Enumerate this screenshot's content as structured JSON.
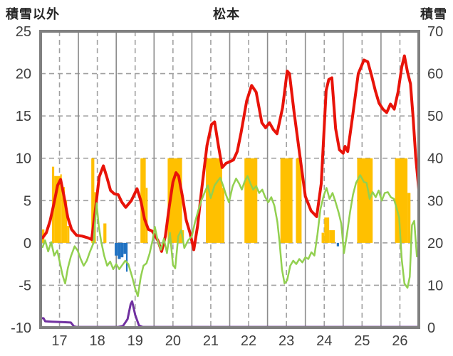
{
  "chart": {
    "left_axis_title": "積雪以外",
    "title": "松本",
    "right_axis_title": "積雪"
  },
  "chart_data": {
    "type": "combo line+bar time series (no legend shown)",
    "title": "松本",
    "x_axis": {
      "range": [
        17,
        27
      ],
      "tick_labels": [
        "17",
        "18",
        "19",
        "20",
        "21",
        "22",
        "23",
        "24",
        "25",
        "26"
      ],
      "solid_gridlines_at": [
        18,
        19,
        20,
        21,
        22,
        23,
        24,
        25,
        26
      ],
      "dashed_gridlines_at": [
        17.5,
        18.5,
        19.5,
        20.5,
        21.5,
        22.5,
        23.5,
        24.5,
        25.5,
        26.5
      ]
    },
    "left_axis": {
      "title": "積雪以外",
      "range": [
        -10,
        25
      ],
      "ticks": [
        25,
        20,
        15,
        10,
        5,
        0,
        -5,
        -10
      ],
      "dashed_gridlines_at": [
        20,
        15,
        10,
        5,
        0,
        -5
      ]
    },
    "right_axis": {
      "title": "積雪",
      "range": [
        0,
        70
      ],
      "ticks": [
        70,
        60,
        50,
        40,
        30,
        20,
        10,
        0
      ]
    },
    "colors": {
      "red_line": "#e81309",
      "green_line": "#92d050",
      "orange_bars": "#ffc000",
      "blue_bars": "#2172c2",
      "purple_line": "#7030a0",
      "grid_dashed": "#a0a0a0",
      "grid_solid": "#8c8c8c",
      "border": "#808080",
      "tick_text": "#3f3f3f"
    },
    "series": [
      {
        "name": "red_line",
        "type": "line",
        "axis": "left",
        "color": "#e81309",
        "width": 4,
        "points": [
          [
            17.05,
            0.6
          ],
          [
            17.15,
            1.2
          ],
          [
            17.25,
            2.6
          ],
          [
            17.35,
            4.6
          ],
          [
            17.45,
            6.8
          ],
          [
            17.53,
            7.5
          ],
          [
            17.62,
            5.5
          ],
          [
            17.72,
            3.0
          ],
          [
            17.82,
            1.6
          ],
          [
            17.95,
            0.9
          ],
          [
            18.1,
            0.8
          ],
          [
            18.25,
            0.6
          ],
          [
            18.35,
            0.4
          ],
          [
            18.45,
            4.0
          ],
          [
            18.55,
            7.8
          ],
          [
            18.66,
            9.1
          ],
          [
            18.75,
            7.8
          ],
          [
            18.85,
            6.2
          ],
          [
            18.95,
            5.8
          ],
          [
            19.05,
            5.7
          ],
          [
            19.15,
            4.8
          ],
          [
            19.25,
            4.2
          ],
          [
            19.4,
            5.0
          ],
          [
            19.55,
            6.4
          ],
          [
            19.65,
            5.0
          ],
          [
            19.75,
            2.8
          ],
          [
            19.85,
            1.6
          ],
          [
            19.95,
            1.4
          ],
          [
            20.1,
            0.3
          ],
          [
            20.2,
            -1.0
          ],
          [
            20.3,
            0.8
          ],
          [
            20.4,
            4.2
          ],
          [
            20.5,
            7.2
          ],
          [
            20.58,
            8.3
          ],
          [
            20.65,
            7.9
          ],
          [
            20.75,
            5.5
          ],
          [
            20.85,
            2.7
          ],
          [
            20.95,
            1.2
          ],
          [
            21.05,
            -0.8
          ],
          [
            21.15,
            2.0
          ],
          [
            21.25,
            6.0
          ],
          [
            21.4,
            11.5
          ],
          [
            21.52,
            14.0
          ],
          [
            21.6,
            14.3
          ],
          [
            21.7,
            11.5
          ],
          [
            21.8,
            8.9
          ],
          [
            21.9,
            9.4
          ],
          [
            22.0,
            9.6
          ],
          [
            22.1,
            9.8
          ],
          [
            22.2,
            10.8
          ],
          [
            22.3,
            13.0
          ],
          [
            22.45,
            16.8
          ],
          [
            22.58,
            18.6
          ],
          [
            22.7,
            17.8
          ],
          [
            22.85,
            14.2
          ],
          [
            22.95,
            13.6
          ],
          [
            23.05,
            14.2
          ],
          [
            23.15,
            13.4
          ],
          [
            23.25,
            12.9
          ],
          [
            23.4,
            16.0
          ],
          [
            23.52,
            20.3
          ],
          [
            23.58,
            20.0
          ],
          [
            23.7,
            15.5
          ],
          [
            23.85,
            10.5
          ],
          [
            24.0,
            5.5
          ],
          [
            24.15,
            3.8
          ],
          [
            24.3,
            3.1
          ],
          [
            24.42,
            7.0
          ],
          [
            24.55,
            18.0
          ],
          [
            24.62,
            19.3
          ],
          [
            24.7,
            19.5
          ],
          [
            24.8,
            13.5
          ],
          [
            24.9,
            11.0
          ],
          [
            25.0,
            10.6
          ],
          [
            25.05,
            11.4
          ],
          [
            25.12,
            10.8
          ],
          [
            25.25,
            15.0
          ],
          [
            25.4,
            20.0
          ],
          [
            25.55,
            21.6
          ],
          [
            25.65,
            21.4
          ],
          [
            25.75,
            19.8
          ],
          [
            25.85,
            18.0
          ],
          [
            25.95,
            16.5
          ],
          [
            26.05,
            15.8
          ],
          [
            26.15,
            15.4
          ],
          [
            26.25,
            16.4
          ],
          [
            26.35,
            15.8
          ],
          [
            26.45,
            17.8
          ],
          [
            26.55,
            20.8
          ],
          [
            26.62,
            22.1
          ],
          [
            26.7,
            20.2
          ],
          [
            26.78,
            18.8
          ],
          [
            26.85,
            14.8
          ],
          [
            26.92,
            10.0
          ],
          [
            27.0,
            6.3
          ]
        ]
      },
      {
        "name": "green_line",
        "type": "line",
        "axis": "left",
        "color": "#92d050",
        "width": 2.5,
        "points": [
          [
            17.05,
            -0.5
          ],
          [
            17.12,
            0.3
          ],
          [
            17.2,
            -1.0
          ],
          [
            17.28,
            0.1
          ],
          [
            17.36,
            -1.5
          ],
          [
            17.44,
            -0.9
          ],
          [
            17.5,
            -2.1
          ],
          [
            17.58,
            -3.8
          ],
          [
            17.65,
            -4.8
          ],
          [
            17.72,
            -3.0
          ],
          [
            17.8,
            -1.6
          ],
          [
            17.9,
            -0.4
          ],
          [
            17.98,
            -0.9
          ],
          [
            18.06,
            -1.9
          ],
          [
            18.14,
            -2.7
          ],
          [
            18.22,
            -2.1
          ],
          [
            18.3,
            -1.1
          ],
          [
            18.4,
            0.0
          ],
          [
            18.48,
            4.7
          ],
          [
            18.54,
            1.9
          ],
          [
            18.6,
            0.2
          ],
          [
            18.68,
            -1.5
          ],
          [
            18.76,
            -2.7
          ],
          [
            18.84,
            -2.2
          ],
          [
            18.92,
            -3.1
          ],
          [
            19.0,
            -2.5
          ],
          [
            19.08,
            -3.1
          ],
          [
            19.16,
            -2.6
          ],
          [
            19.24,
            -2.1
          ],
          [
            19.32,
            -2.5
          ],
          [
            19.42,
            -4.0
          ],
          [
            19.5,
            -5.4
          ],
          [
            19.57,
            -6.3
          ],
          [
            19.65,
            -4.0
          ],
          [
            19.72,
            -2.7
          ],
          [
            19.8,
            -2.4
          ],
          [
            19.88,
            -1.3
          ],
          [
            19.96,
            0.3
          ],
          [
            20.02,
            1.9
          ],
          [
            20.1,
            0.2
          ],
          [
            20.18,
            -0.8
          ],
          [
            20.26,
            0.5
          ],
          [
            20.34,
            -1.2
          ],
          [
            20.42,
            1.2
          ],
          [
            20.5,
            -2.6
          ],
          [
            20.56,
            -3.0
          ],
          [
            20.64,
            0.8
          ],
          [
            20.72,
            1.5
          ],
          [
            20.8,
            -0.6
          ],
          [
            20.9,
            0.3
          ],
          [
            21.0,
            0.8
          ],
          [
            21.08,
            2.4
          ],
          [
            21.16,
            3.7
          ],
          [
            21.25,
            5.0
          ],
          [
            21.34,
            6.0
          ],
          [
            21.42,
            6.8
          ],
          [
            21.5,
            5.3
          ],
          [
            21.6,
            6.8
          ],
          [
            21.68,
            7.3
          ],
          [
            21.75,
            7.7
          ],
          [
            21.83,
            6.7
          ],
          [
            21.9,
            5.7
          ],
          [
            21.98,
            4.8
          ],
          [
            22.08,
            6.7
          ],
          [
            22.17,
            7.6
          ],
          [
            22.25,
            7.0
          ],
          [
            22.32,
            6.3
          ],
          [
            22.4,
            7.3
          ],
          [
            22.47,
            7.9
          ],
          [
            22.55,
            7.0
          ],
          [
            22.62,
            6.3
          ],
          [
            22.7,
            6.7
          ],
          [
            22.78,
            5.9
          ],
          [
            22.86,
            6.3
          ],
          [
            22.94,
            5.4
          ],
          [
            23.02,
            4.8
          ],
          [
            23.1,
            5.4
          ],
          [
            23.18,
            4.4
          ],
          [
            23.26,
            2.5
          ],
          [
            23.32,
            0.0
          ],
          [
            23.38,
            -3.1
          ],
          [
            23.45,
            -4.8
          ],
          [
            23.52,
            -4.4
          ],
          [
            23.6,
            -2.7
          ],
          [
            23.68,
            -2.1
          ],
          [
            23.76,
            -2.5
          ],
          [
            23.84,
            -1.9
          ],
          [
            23.92,
            -2.3
          ],
          [
            24.0,
            -1.7
          ],
          [
            24.08,
            -1.9
          ],
          [
            24.16,
            -1.1
          ],
          [
            24.24,
            -1.5
          ],
          [
            24.32,
            1.0
          ],
          [
            24.4,
            4.0
          ],
          [
            24.48,
            5.5
          ],
          [
            24.56,
            6.5
          ],
          [
            24.64,
            5.2
          ],
          [
            24.72,
            5.9
          ],
          [
            24.8,
            4.8
          ],
          [
            24.88,
            3.6
          ],
          [
            24.95,
            2.3
          ],
          [
            25.02,
            -1.2
          ],
          [
            25.1,
            1.0
          ],
          [
            25.18,
            3.6
          ],
          [
            25.26,
            5.7
          ],
          [
            25.34,
            7.1
          ],
          [
            25.45,
            8.0
          ],
          [
            25.55,
            7.2
          ],
          [
            25.62,
            7.1
          ],
          [
            25.7,
            5.2
          ],
          [
            25.78,
            6.0
          ],
          [
            25.86,
            5.4
          ],
          [
            25.94,
            6.2
          ],
          [
            26.02,
            5.0
          ],
          [
            26.1,
            5.9
          ],
          [
            26.18,
            6.0
          ],
          [
            26.26,
            5.4
          ],
          [
            26.34,
            5.2
          ],
          [
            26.42,
            4.0
          ],
          [
            26.48,
            3.0
          ],
          [
            26.55,
            -2.0
          ],
          [
            26.62,
            -4.8
          ],
          [
            26.7,
            -5.3
          ],
          [
            26.76,
            -4.0
          ],
          [
            26.82,
            2.1
          ],
          [
            26.88,
            2.6
          ],
          [
            26.95,
            -1.6
          ]
        ]
      },
      {
        "name": "orange_bars",
        "type": "bars",
        "axis": "left",
        "color": "#ffc000",
        "bars": [
          [
            17.02,
            17.1,
            1.6
          ],
          [
            17.3,
            17.36,
            9.0
          ],
          [
            17.36,
            17.52,
            7.9
          ],
          [
            17.52,
            17.56,
            8.1
          ],
          [
            17.56,
            17.64,
            6.6
          ],
          [
            17.64,
            17.7,
            5.0
          ],
          [
            17.7,
            17.76,
            2.0
          ],
          [
            18.34,
            18.42,
            10
          ],
          [
            18.42,
            18.46,
            6.0
          ],
          [
            18.66,
            18.74,
            2.3
          ],
          [
            19.64,
            19.78,
            10
          ],
          [
            19.78,
            19.83,
            6.5
          ],
          [
            20.36,
            20.74,
            10
          ],
          [
            20.74,
            20.79,
            1.5
          ],
          [
            21.37,
            21.8,
            10
          ],
          [
            21.8,
            21.86,
            6.5
          ],
          [
            22.39,
            22.73,
            10
          ],
          [
            23.34,
            23.66,
            10
          ],
          [
            23.75,
            23.9,
            10
          ],
          [
            24.43,
            24.5,
            1.2
          ],
          [
            24.5,
            24.63,
            3.0
          ],
          [
            24.63,
            24.78,
            1.5
          ],
          [
            25.37,
            25.78,
            10
          ],
          [
            26.37,
            26.7,
            10
          ],
          [
            26.7,
            26.78,
            5.9
          ]
        ]
      },
      {
        "name": "blue_bars",
        "type": "bars",
        "axis": "left",
        "color": "#2172c2",
        "bars": [
          [
            18.96,
            19.04,
            -1.5
          ],
          [
            19.04,
            19.12,
            -1.9
          ],
          [
            19.12,
            19.19,
            -1.7
          ],
          [
            19.19,
            19.26,
            -1.3
          ],
          [
            19.26,
            19.3,
            -3.4
          ],
          [
            24.83,
            24.89,
            -0.4
          ]
        ]
      },
      {
        "name": "purple_line",
        "type": "line",
        "axis": "right",
        "color": "#7030a0",
        "width": 3,
        "points": [
          [
            17.0,
            2.2
          ],
          [
            17.08,
            2.2
          ],
          [
            17.12,
            1.5
          ],
          [
            17.3,
            1.4
          ],
          [
            17.55,
            1.3
          ],
          [
            17.8,
            1.2
          ],
          [
            17.88,
            0.3
          ],
          [
            17.95,
            0.15
          ],
          [
            19.05,
            0.15
          ],
          [
            19.18,
            0.4
          ],
          [
            19.3,
            2.0
          ],
          [
            19.38,
            5.5
          ],
          [
            19.42,
            6.2
          ],
          [
            19.5,
            3.0
          ],
          [
            19.6,
            0.5
          ],
          [
            19.7,
            0.15
          ],
          [
            27.0,
            0.15
          ]
        ]
      }
    ]
  }
}
